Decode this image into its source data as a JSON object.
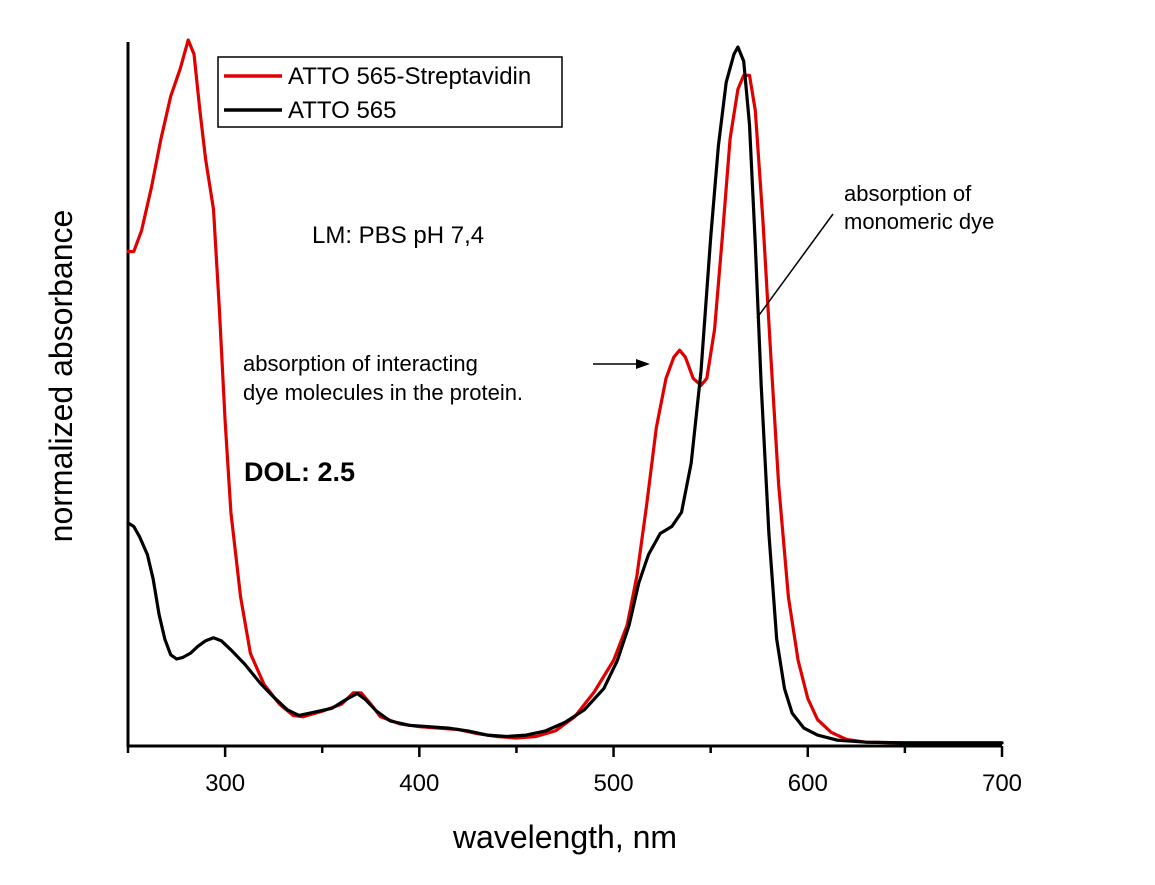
{
  "chart_data": {
    "type": "line",
    "title": "",
    "xlabel": "wavelength, nm",
    "ylabel": "normalized absorbance",
    "xlim": [
      250,
      700
    ],
    "ylim": [
      0,
      1.0
    ],
    "xticks": [
      300,
      400,
      500,
      600,
      700
    ],
    "grid": false,
    "legend_position": "top-left",
    "series": [
      {
        "name": "ATTO 565-Streptavidin",
        "color": "#e00000",
        "points": [
          [
            250,
            0.7
          ],
          [
            253,
            0.7
          ],
          [
            257,
            0.73
          ],
          [
            262,
            0.79
          ],
          [
            267,
            0.86
          ],
          [
            272,
            0.92
          ],
          [
            277,
            0.96
          ],
          [
            281,
            1.0
          ],
          [
            284,
            0.98
          ],
          [
            287,
            0.9
          ],
          [
            290,
            0.83
          ],
          [
            294,
            0.76
          ],
          [
            297,
            0.62
          ],
          [
            300,
            0.46
          ],
          [
            303,
            0.33
          ],
          [
            308,
            0.21
          ],
          [
            313,
            0.13
          ],
          [
            320,
            0.086
          ],
          [
            328,
            0.058
          ],
          [
            335,
            0.042
          ],
          [
            340,
            0.04
          ],
          [
            350,
            0.048
          ],
          [
            360,
            0.058
          ],
          [
            366,
            0.074
          ],
          [
            370,
            0.074
          ],
          [
            375,
            0.058
          ],
          [
            380,
            0.04
          ],
          [
            390,
            0.03
          ],
          [
            400,
            0.026
          ],
          [
            410,
            0.024
          ],
          [
            420,
            0.022
          ],
          [
            430,
            0.016
          ],
          [
            440,
            0.012
          ],
          [
            450,
            0.01
          ],
          [
            460,
            0.012
          ],
          [
            470,
            0.02
          ],
          [
            480,
            0.04
          ],
          [
            490,
            0.075
          ],
          [
            500,
            0.12
          ],
          [
            507,
            0.17
          ],
          [
            512,
            0.24
          ],
          [
            517,
            0.34
          ],
          [
            522,
            0.45
          ],
          [
            527,
            0.52
          ],
          [
            531,
            0.55
          ],
          [
            534,
            0.56
          ],
          [
            537,
            0.55
          ],
          [
            541,
            0.52
          ],
          [
            545,
            0.51
          ],
          [
            548,
            0.52
          ],
          [
            552,
            0.59
          ],
          [
            556,
            0.72
          ],
          [
            560,
            0.86
          ],
          [
            564,
            0.93
          ],
          [
            567,
            0.95
          ],
          [
            570,
            0.95
          ],
          [
            573,
            0.9
          ],
          [
            577,
            0.74
          ],
          [
            581,
            0.55
          ],
          [
            585,
            0.37
          ],
          [
            590,
            0.21
          ],
          [
            595,
            0.12
          ],
          [
            600,
            0.066
          ],
          [
            605,
            0.036
          ],
          [
            612,
            0.018
          ],
          [
            620,
            0.008
          ],
          [
            630,
            0.004
          ],
          [
            650,
            0.003
          ],
          [
            675,
            0.003
          ],
          [
            700,
            0.003
          ]
        ]
      },
      {
        "name": "ATTO 565",
        "color": "#000000",
        "points": [
          [
            250,
            0.315
          ],
          [
            253,
            0.31
          ],
          [
            256,
            0.295
          ],
          [
            260,
            0.27
          ],
          [
            263,
            0.235
          ],
          [
            266,
            0.185
          ],
          [
            269,
            0.15
          ],
          [
            272,
            0.128
          ],
          [
            275,
            0.122
          ],
          [
            278,
            0.124
          ],
          [
            282,
            0.13
          ],
          [
            286,
            0.14
          ],
          [
            290,
            0.148
          ],
          [
            294,
            0.152
          ],
          [
            298,
            0.148
          ],
          [
            303,
            0.135
          ],
          [
            310,
            0.115
          ],
          [
            318,
            0.088
          ],
          [
            325,
            0.068
          ],
          [
            332,
            0.05
          ],
          [
            338,
            0.042
          ],
          [
            345,
            0.046
          ],
          [
            355,
            0.052
          ],
          [
            362,
            0.064
          ],
          [
            368,
            0.073
          ],
          [
            372,
            0.065
          ],
          [
            378,
            0.048
          ],
          [
            385,
            0.034
          ],
          [
            395,
            0.028
          ],
          [
            405,
            0.026
          ],
          [
            415,
            0.024
          ],
          [
            425,
            0.02
          ],
          [
            435,
            0.014
          ],
          [
            445,
            0.012
          ],
          [
            455,
            0.014
          ],
          [
            465,
            0.02
          ],
          [
            475,
            0.032
          ],
          [
            485,
            0.05
          ],
          [
            495,
            0.08
          ],
          [
            502,
            0.12
          ],
          [
            508,
            0.17
          ],
          [
            513,
            0.23
          ],
          [
            518,
            0.27
          ],
          [
            524,
            0.3
          ],
          [
            530,
            0.31
          ],
          [
            535,
            0.33
          ],
          [
            540,
            0.4
          ],
          [
            545,
            0.53
          ],
          [
            550,
            0.72
          ],
          [
            554,
            0.85
          ],
          [
            558,
            0.94
          ],
          [
            562,
            0.98
          ],
          [
            564,
            0.99
          ],
          [
            567,
            0.97
          ],
          [
            570,
            0.88
          ],
          [
            573,
            0.71
          ],
          [
            576,
            0.51
          ],
          [
            580,
            0.3
          ],
          [
            584,
            0.15
          ],
          [
            588,
            0.08
          ],
          [
            592,
            0.045
          ],
          [
            598,
            0.024
          ],
          [
            605,
            0.014
          ],
          [
            615,
            0.007
          ],
          [
            630,
            0.004
          ],
          [
            650,
            0.003
          ],
          [
            675,
            0.003
          ],
          [
            700,
            0.003
          ]
        ]
      }
    ],
    "annotations": [
      {
        "lines": [
          "absorption of",
          "monomeric dye"
        ],
        "style": "normal"
      },
      {
        "lines": [
          "absorption of interacting",
          "dye molecules in the protein."
        ],
        "style": "normal"
      },
      {
        "lines": [
          "LM: PBS pH 7,4"
        ],
        "style": "large"
      },
      {
        "lines": [
          "DOL: 2.5"
        ],
        "style": "bold"
      }
    ]
  }
}
